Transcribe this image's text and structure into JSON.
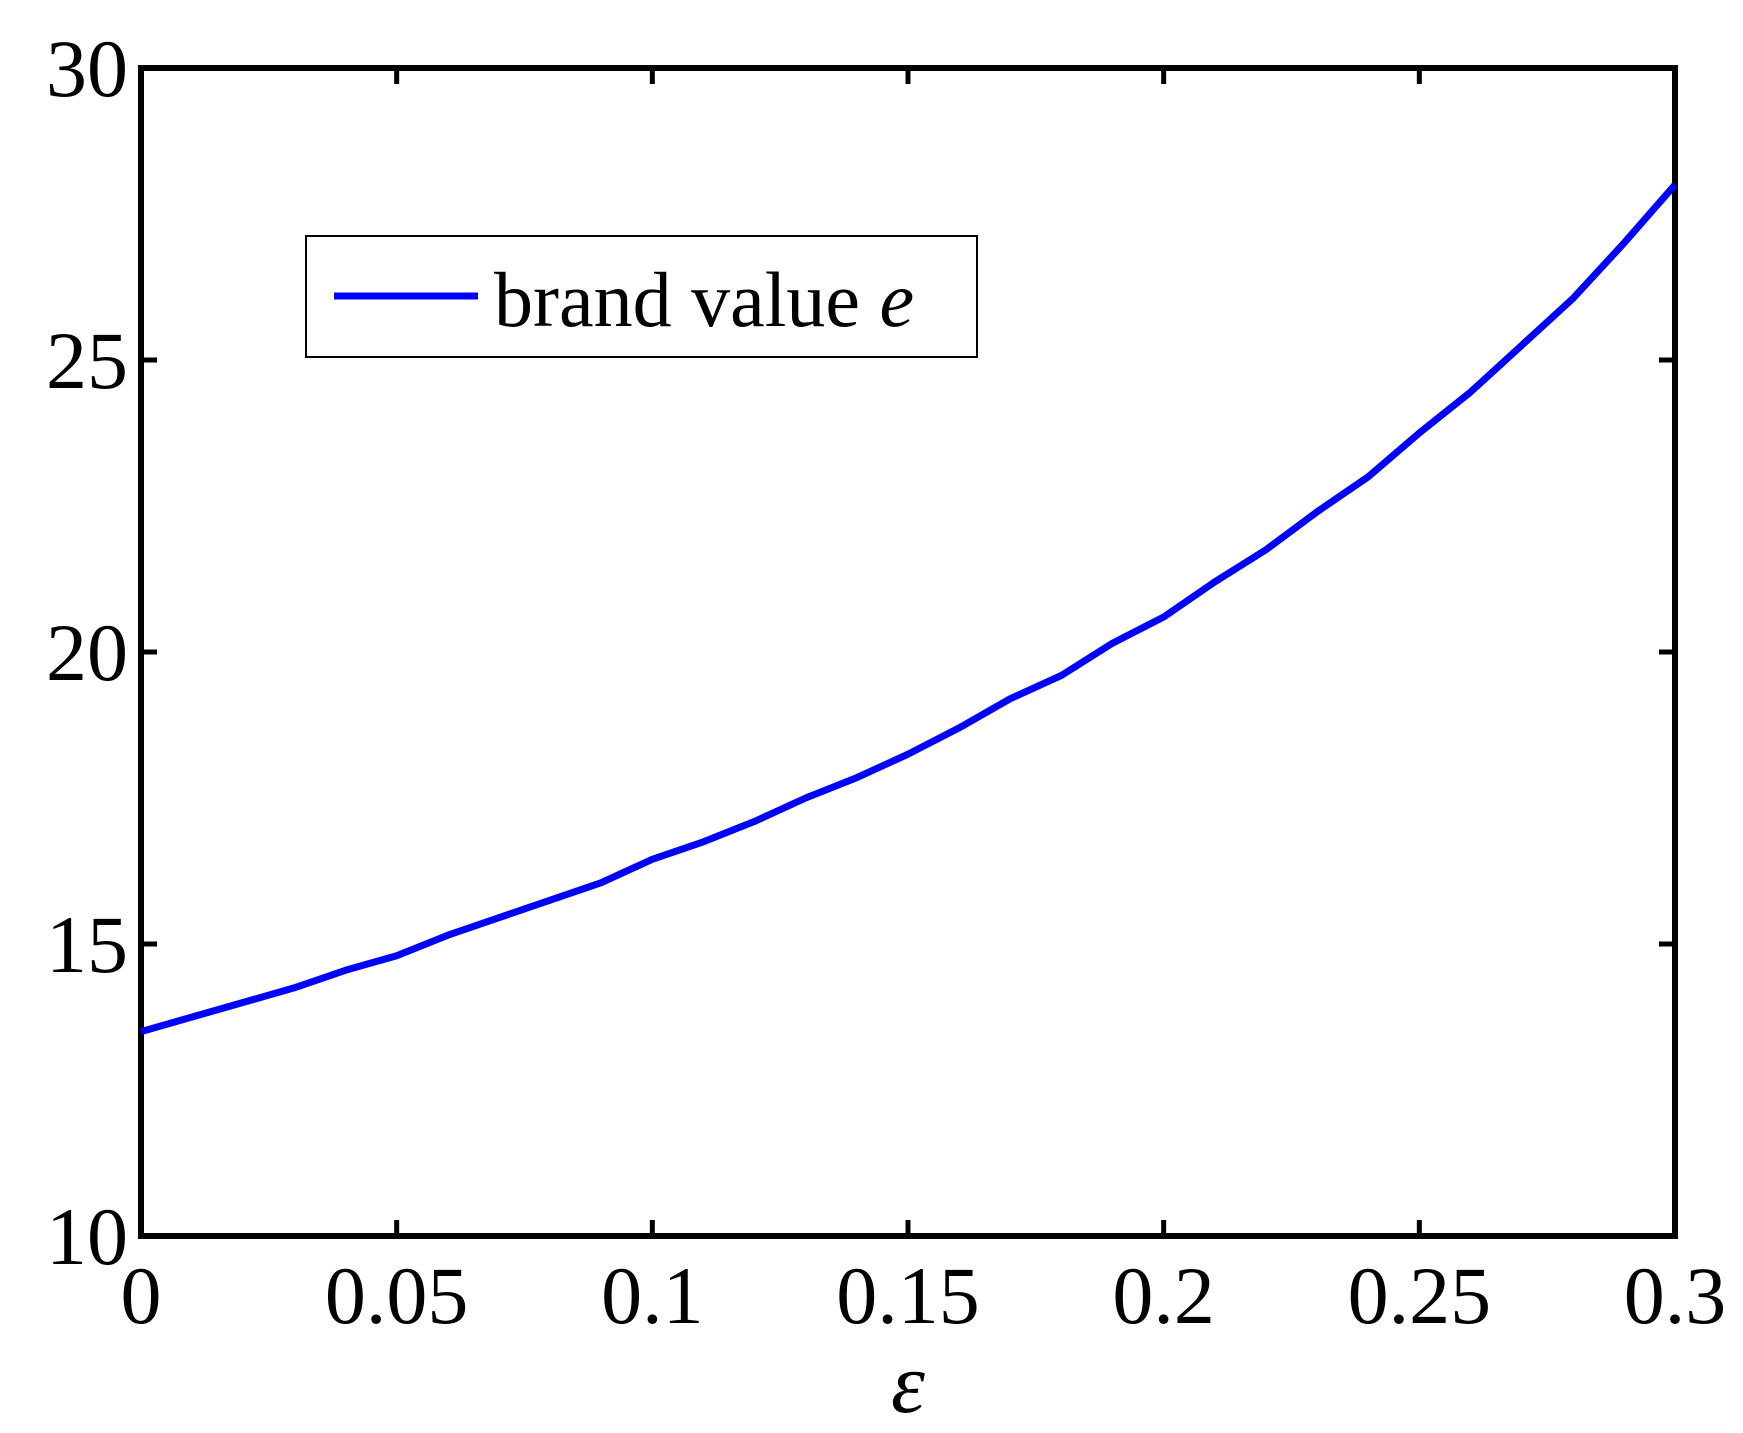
{
  "chart_data": {
    "type": "line",
    "title": "",
    "xlabel": "ε",
    "ylabel": "",
    "xlim": [
      0,
      0.3
    ],
    "ylim": [
      10,
      30
    ],
    "xticks": [
      0,
      0.05,
      0.1,
      0.15,
      0.2,
      0.25,
      0.3
    ],
    "xtick_labels": [
      "0",
      "0.05",
      "0.1",
      "0.15",
      "0.2",
      "0.25",
      "0.3"
    ],
    "yticks": [
      10,
      15,
      20,
      25,
      30
    ],
    "ytick_labels": [
      "10",
      "15",
      "20",
      "25",
      "30"
    ],
    "grid": false,
    "legend": {
      "placement": "upper-left",
      "entries": [
        {
          "prefix": "brand value ",
          "symbol": "e"
        }
      ]
    },
    "series": [
      {
        "name": "brand value e",
        "color": "#0000ff",
        "x": [
          0,
          0.01,
          0.02,
          0.03,
          0.04,
          0.05,
          0.06,
          0.07,
          0.08,
          0.09,
          0.1,
          0.11,
          0.12,
          0.13,
          0.14,
          0.15,
          0.16,
          0.17,
          0.18,
          0.19,
          0.2,
          0.21,
          0.22,
          0.23,
          0.24,
          0.25,
          0.26,
          0.27,
          0.28,
          0.29,
          0.3
        ],
        "y": [
          13.5,
          13.75,
          14.0,
          14.25,
          14.55,
          14.8,
          15.15,
          15.45,
          15.75,
          16.05,
          16.45,
          16.75,
          17.1,
          17.5,
          17.85,
          18.25,
          18.7,
          19.2,
          19.6,
          20.15,
          20.6,
          21.2,
          21.75,
          22.4,
          23.0,
          23.75,
          24.45,
          25.25,
          26.05,
          27.0,
          28.0
        ]
      }
    ]
  }
}
